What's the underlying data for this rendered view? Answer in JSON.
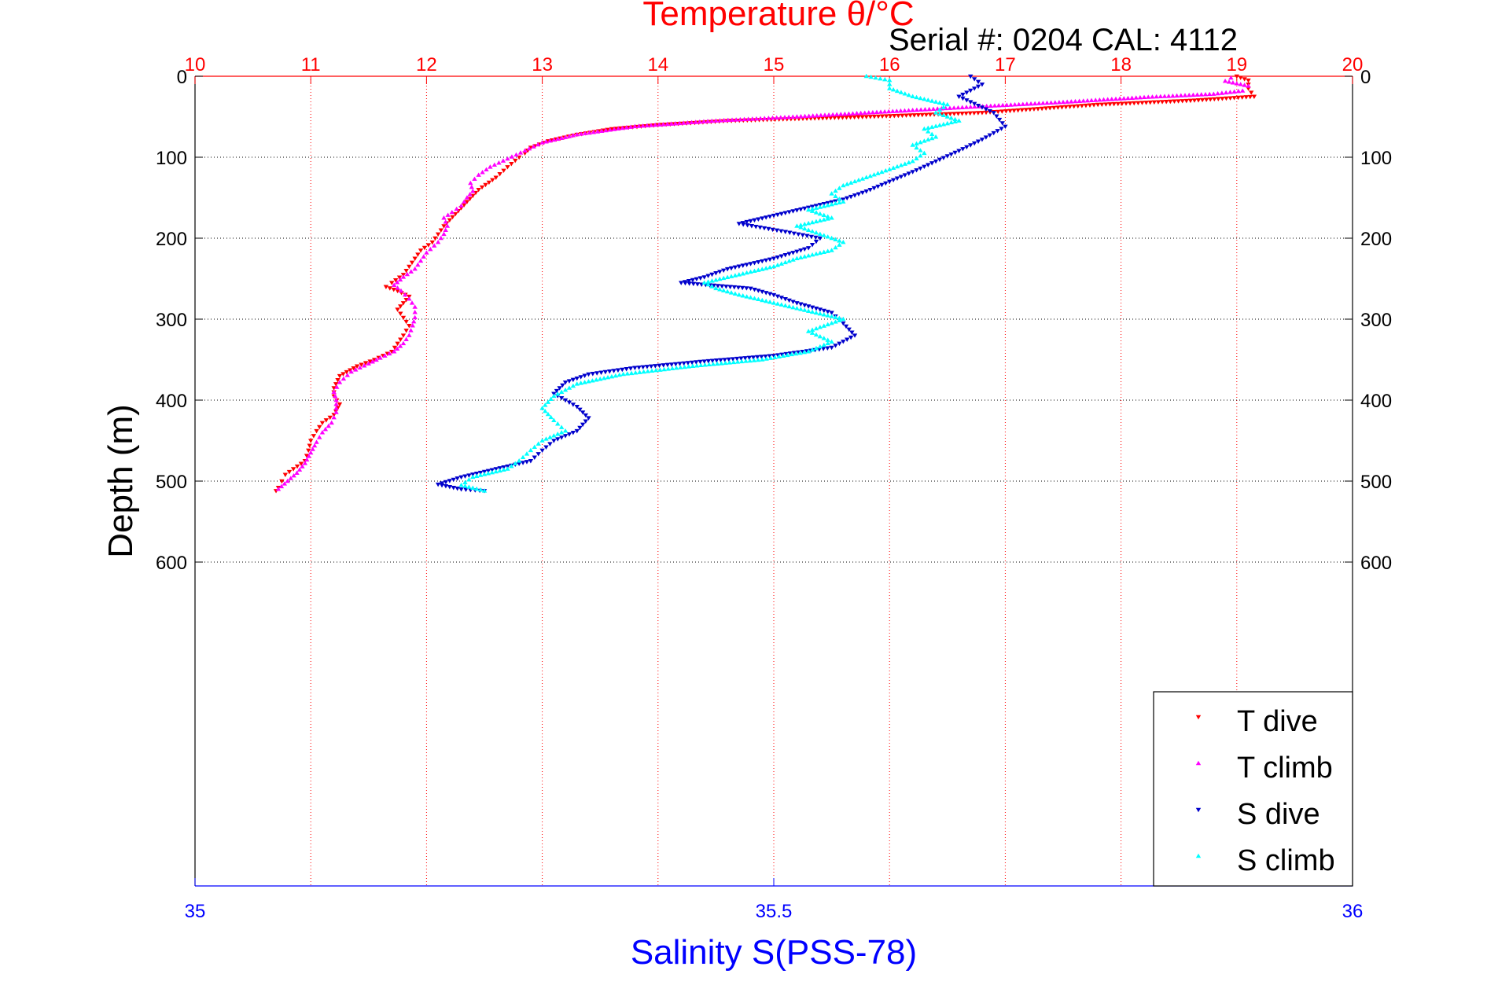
{
  "chart_data": {
    "type": "scatter",
    "title": "",
    "serial_text": "Serial #: 0204  CAL: 4112",
    "temp_axis": {
      "label": "Temperature θ/°C",
      "min": 10,
      "max": 20,
      "ticks": [
        "10",
        "11",
        "12",
        "13",
        "14",
        "15",
        "16",
        "17",
        "18",
        "19",
        "20"
      ],
      "color": "#ff0000",
      "grid": true
    },
    "sal_axis": {
      "label": "Salinity S(PSS-78)",
      "min": 35,
      "max": 36,
      "ticks": [
        "35",
        "35.5",
        "36"
      ],
      "color": "#0000ff"
    },
    "depth_axis": {
      "label": "Depth (m)",
      "min": 0,
      "max": 1000,
      "ticks": [
        "0",
        "100",
        "200",
        "300",
        "400",
        "500",
        "600"
      ],
      "inverted": true,
      "grid": true
    },
    "legend": {
      "position": "bottom-right",
      "entries": [
        {
          "label": "T dive",
          "color": "#ff0000",
          "marker": "triangle-down"
        },
        {
          "label": "T climb",
          "color": "#ff00ff",
          "marker": "triangle-up"
        },
        {
          "label": "S dive",
          "color": "#0000cc",
          "marker": "triangle-down"
        },
        {
          "label": "S climb",
          "color": "#00ffff",
          "marker": "triangle-up"
        }
      ]
    },
    "series": [
      {
        "name": "T dive",
        "axis": "temperature",
        "color": "#ff0000",
        "marker": "triangle-down",
        "points": [
          [
            19.0,
            0
          ],
          [
            19.1,
            5
          ],
          [
            19.1,
            15
          ],
          [
            19.15,
            25
          ],
          [
            18.6,
            30
          ],
          [
            17.8,
            35
          ],
          [
            16.8,
            45
          ],
          [
            15.8,
            50
          ],
          [
            14.6,
            55
          ],
          [
            14.0,
            60
          ],
          [
            13.6,
            65
          ],
          [
            13.3,
            72
          ],
          [
            13.05,
            80
          ],
          [
            12.9,
            88
          ],
          [
            12.85,
            95
          ],
          [
            12.8,
            100
          ],
          [
            12.7,
            112
          ],
          [
            12.6,
            125
          ],
          [
            12.45,
            140
          ],
          [
            12.35,
            155
          ],
          [
            12.25,
            170
          ],
          [
            12.15,
            185
          ],
          [
            12.1,
            195
          ],
          [
            12.05,
            205
          ],
          [
            11.95,
            215
          ],
          [
            11.9,
            225
          ],
          [
            11.85,
            235
          ],
          [
            11.8,
            245
          ],
          [
            11.7,
            255
          ],
          [
            11.65,
            260
          ],
          [
            11.75,
            265
          ],
          [
            11.85,
            272
          ],
          [
            11.8,
            280
          ],
          [
            11.75,
            288
          ],
          [
            11.8,
            298
          ],
          [
            11.85,
            308
          ],
          [
            11.8,
            320
          ],
          [
            11.75,
            330
          ],
          [
            11.7,
            340
          ],
          [
            11.55,
            350
          ],
          [
            11.4,
            358
          ],
          [
            11.25,
            370
          ],
          [
            11.2,
            385
          ],
          [
            11.2,
            395
          ],
          [
            11.25,
            405
          ],
          [
            11.2,
            418
          ],
          [
            11.1,
            428
          ],
          [
            11.05,
            438
          ],
          [
            11.0,
            450
          ],
          [
            10.98,
            462
          ],
          [
            10.95,
            475
          ],
          [
            10.85,
            485
          ],
          [
            10.78,
            492
          ],
          [
            10.75,
            500
          ],
          [
            10.72,
            508
          ],
          [
            10.7,
            512
          ]
        ]
      },
      {
        "name": "T climb",
        "axis": "temperature",
        "color": "#ff00ff",
        "marker": "triangle-up",
        "points": [
          [
            10.72,
            510
          ],
          [
            10.8,
            500
          ],
          [
            10.88,
            490
          ],
          [
            10.95,
            478
          ],
          [
            11.0,
            465
          ],
          [
            11.05,
            452
          ],
          [
            11.1,
            440
          ],
          [
            11.18,
            428
          ],
          [
            11.22,
            415
          ],
          [
            11.22,
            400
          ],
          [
            11.2,
            390
          ],
          [
            11.25,
            378
          ],
          [
            11.35,
            365
          ],
          [
            11.5,
            355
          ],
          [
            11.6,
            348
          ],
          [
            11.72,
            340
          ],
          [
            11.8,
            330
          ],
          [
            11.85,
            320
          ],
          [
            11.88,
            308
          ],
          [
            11.9,
            298
          ],
          [
            11.9,
            285
          ],
          [
            11.85,
            275
          ],
          [
            11.78,
            265
          ],
          [
            11.72,
            258
          ],
          [
            11.8,
            248
          ],
          [
            11.9,
            238
          ],
          [
            11.95,
            228
          ],
          [
            12.0,
            218
          ],
          [
            12.1,
            205
          ],
          [
            12.15,
            195
          ],
          [
            12.18,
            185
          ],
          [
            12.15,
            175
          ],
          [
            12.22,
            168
          ],
          [
            12.3,
            160
          ],
          [
            12.35,
            150
          ],
          [
            12.4,
            142
          ],
          [
            12.38,
            132
          ],
          [
            12.45,
            122
          ],
          [
            12.55,
            112
          ],
          [
            12.7,
            102
          ],
          [
            12.85,
            92
          ],
          [
            13.0,
            82
          ],
          [
            13.3,
            72
          ],
          [
            13.8,
            62
          ],
          [
            14.5,
            55
          ],
          [
            15.2,
            50
          ],
          [
            16.2,
            42
          ],
          [
            16.7,
            38
          ],
          [
            17.5,
            32
          ],
          [
            18.2,
            26
          ],
          [
            18.8,
            22
          ],
          [
            19.05,
            18
          ],
          [
            19.1,
            12
          ],
          [
            18.9,
            6
          ],
          [
            18.95,
            2
          ]
        ]
      },
      {
        "name": "S dive",
        "axis": "salinity",
        "color": "#0000cc",
        "marker": "triangle-down",
        "points": [
          [
            35.67,
            0
          ],
          [
            35.68,
            10
          ],
          [
            35.66,
            25
          ],
          [
            35.69,
            45
          ],
          [
            35.7,
            62
          ],
          [
            35.68,
            78
          ],
          [
            35.66,
            92
          ],
          [
            35.64,
            105
          ],
          [
            35.62,
            118
          ],
          [
            35.6,
            130
          ],
          [
            35.58,
            142
          ],
          [
            35.56,
            152
          ],
          [
            35.53,
            162
          ],
          [
            35.5,
            172
          ],
          [
            35.47,
            182
          ],
          [
            35.51,
            192
          ],
          [
            35.54,
            200
          ],
          [
            35.53,
            212
          ],
          [
            35.5,
            225
          ],
          [
            35.46,
            238
          ],
          [
            35.44,
            248
          ],
          [
            35.42,
            255
          ],
          [
            35.48,
            262
          ],
          [
            35.5,
            270
          ],
          [
            35.52,
            280
          ],
          [
            35.55,
            292
          ],
          [
            35.56,
            305
          ],
          [
            35.57,
            320
          ],
          [
            35.55,
            335
          ],
          [
            35.5,
            345
          ],
          [
            35.44,
            352
          ],
          [
            35.38,
            360
          ],
          [
            35.34,
            368
          ],
          [
            35.32,
            378
          ],
          [
            35.31,
            392
          ],
          [
            35.33,
            408
          ],
          [
            35.34,
            422
          ],
          [
            35.33,
            438
          ],
          [
            35.31,
            450
          ],
          [
            35.3,
            462
          ],
          [
            35.29,
            475
          ],
          [
            35.26,
            485
          ],
          [
            35.23,
            495
          ],
          [
            35.21,
            504
          ],
          [
            35.23,
            510
          ],
          [
            35.25,
            512
          ]
        ]
      },
      {
        "name": "S climb",
        "axis": "salinity",
        "color": "#00ffff",
        "marker": "triangle-up",
        "points": [
          [
            35.25,
            512
          ],
          [
            35.23,
            505
          ],
          [
            35.24,
            495
          ],
          [
            35.27,
            485
          ],
          [
            35.28,
            475
          ],
          [
            35.29,
            462
          ],
          [
            35.3,
            450
          ],
          [
            35.32,
            438
          ],
          [
            35.31,
            425
          ],
          [
            35.3,
            410
          ],
          [
            35.31,
            395
          ],
          [
            35.33,
            380
          ],
          [
            35.37,
            368
          ],
          [
            35.43,
            358
          ],
          [
            35.49,
            350
          ],
          [
            35.53,
            340
          ],
          [
            35.55,
            328
          ],
          [
            35.53,
            315
          ],
          [
            35.56,
            300
          ],
          [
            35.53,
            290
          ],
          [
            35.5,
            280
          ],
          [
            35.47,
            270
          ],
          [
            35.45,
            262
          ],
          [
            35.44,
            255
          ],
          [
            35.47,
            245
          ],
          [
            35.5,
            235
          ],
          [
            35.52,
            225
          ],
          [
            35.55,
            215
          ],
          [
            35.56,
            205
          ],
          [
            35.54,
            195
          ],
          [
            35.52,
            185
          ],
          [
            35.55,
            175
          ],
          [
            35.53,
            165
          ],
          [
            35.56,
            155
          ],
          [
            35.55,
            145
          ],
          [
            35.56,
            135
          ],
          [
            35.58,
            125
          ],
          [
            35.6,
            115
          ],
          [
            35.62,
            105
          ],
          [
            35.63,
            95
          ],
          [
            35.62,
            85
          ],
          [
            35.64,
            75
          ],
          [
            35.63,
            65
          ],
          [
            35.66,
            55
          ],
          [
            35.64,
            45
          ],
          [
            35.65,
            35
          ],
          [
            35.62,
            25
          ],
          [
            35.6,
            15
          ],
          [
            35.6,
            5
          ],
          [
            35.58,
            0
          ]
        ]
      }
    ]
  }
}
